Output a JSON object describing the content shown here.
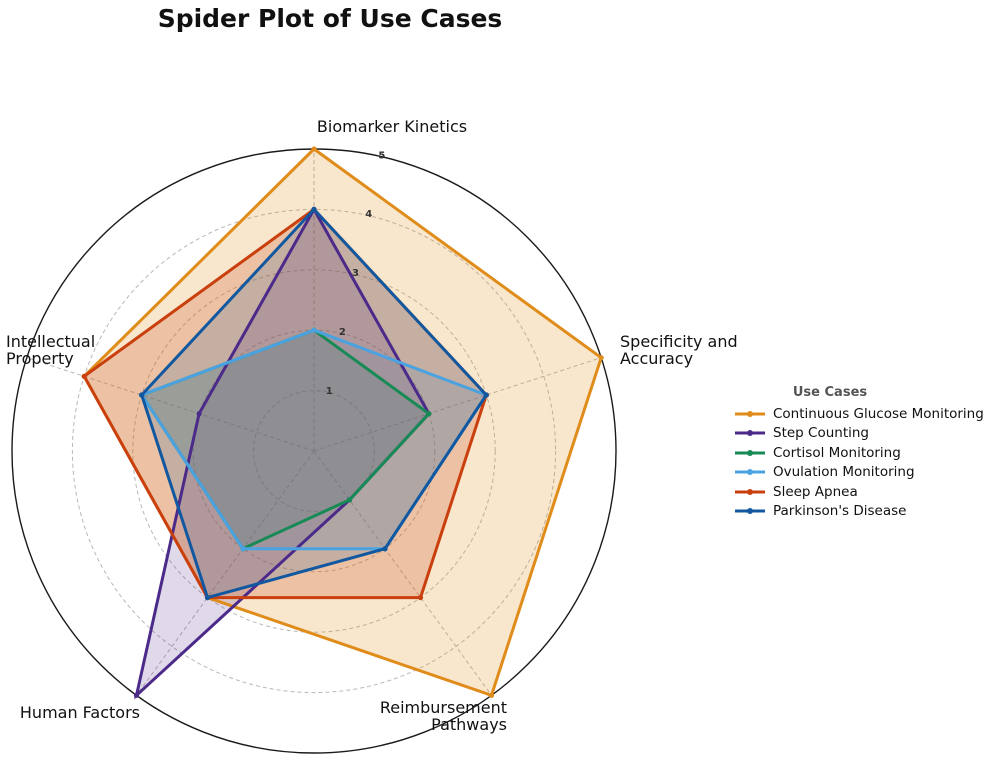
{
  "chart_data": {
    "type": "radar",
    "title": "Spider Plot of Use Cases",
    "axes": [
      [
        "Biomarker Kinetics"
      ],
      [
        "Specificity and",
        "Accuracy"
      ],
      [
        "Reimbursement",
        "Pathways"
      ],
      [
        "Human Factors"
      ],
      [
        "Intellectual",
        "Property"
      ]
    ],
    "r_ticks": [
      "1",
      "2",
      "3",
      "4",
      "5"
    ],
    "rlim": [
      0,
      5
    ],
    "grid": true,
    "legend_title": "Use Cases",
    "legend_position": "right",
    "series": [
      {
        "name": "Continuous Glucose Monitoring",
        "color": "#e08c1a",
        "fill_opacity": 0.22,
        "values": [
          5,
          5,
          5,
          3,
          4
        ]
      },
      {
        "name": "Step Counting",
        "color": "#4b2a8a",
        "fill_opacity": 0.18,
        "values": [
          4,
          2,
          1,
          5,
          2
        ]
      },
      {
        "name": "Cortisol Monitoring",
        "color": "#178a55",
        "fill_opacity": 0.18,
        "values": [
          2,
          2,
          1,
          2,
          3
        ]
      },
      {
        "name": "Ovulation Monitoring",
        "color": "#4aa3e0",
        "fill_opacity": 0.18,
        "values": [
          2,
          3,
          2,
          2,
          3
        ]
      },
      {
        "name": "Sleep Apnea",
        "color": "#c9400e",
        "fill_opacity": 0.22,
        "values": [
          4,
          3,
          3,
          3,
          4
        ]
      },
      {
        "name": "Parkinson's Disease",
        "color": "#1158a0",
        "fill_opacity": 0.18,
        "values": [
          4,
          3,
          2,
          3,
          3
        ]
      }
    ]
  }
}
